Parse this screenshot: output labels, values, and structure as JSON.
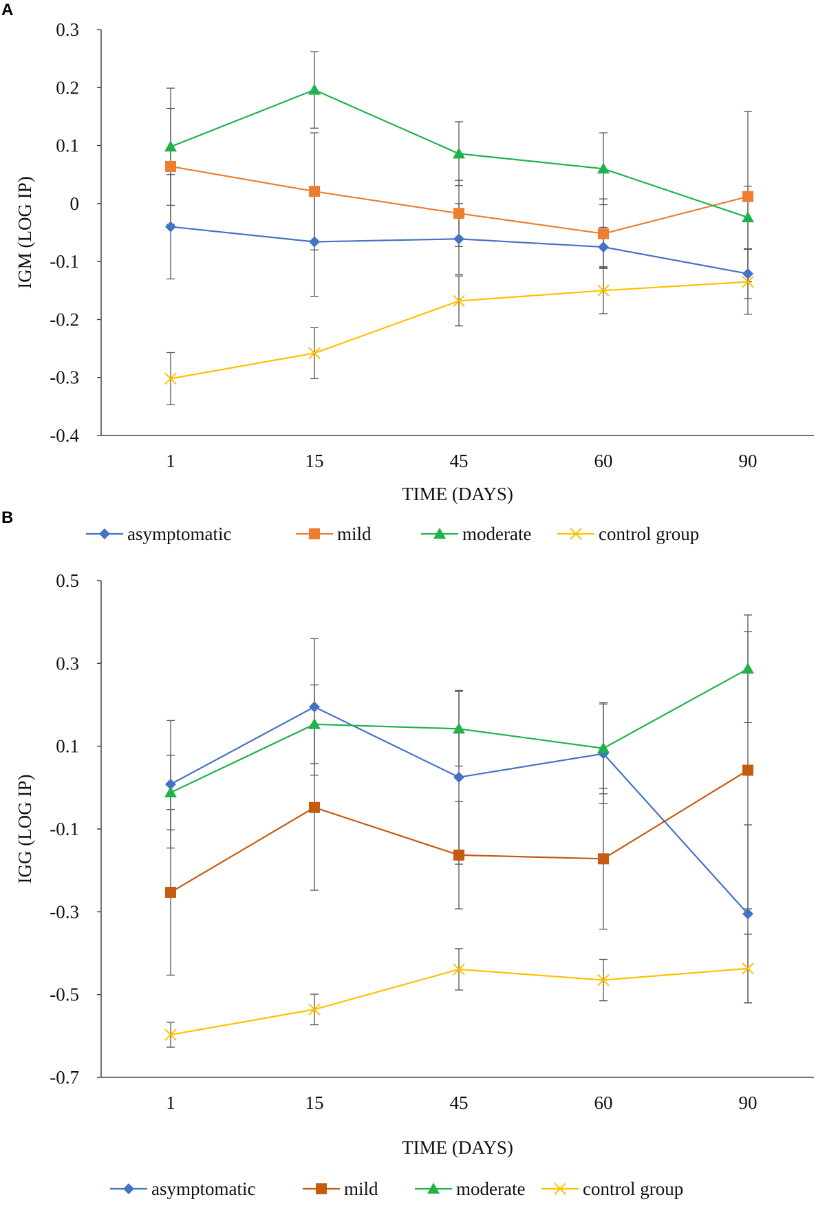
{
  "chart_data": [
    {
      "panel": "A",
      "type": "line",
      "xlabel": "TIME (DAYS)",
      "ylabel": "IGM (LOG IP)",
      "categories": [
        "1",
        "15",
        "45",
        "60",
        "90"
      ],
      "ylim": [
        -0.4,
        0.3
      ],
      "yticks": [
        0.3,
        0.2,
        0.1,
        0,
        -0.1,
        -0.2,
        -0.3,
        -0.4
      ],
      "ytick_labels": [
        "0.3",
        "0.2",
        "0.1",
        "0",
        "-0.1",
        "-0.2",
        "-0.3",
        "-0.4"
      ],
      "series": [
        {
          "name": "asymptomatic",
          "color": "#4472C4",
          "marker": "diamond",
          "values": [
            -0.04,
            -0.066,
            -0.061,
            -0.075,
            -0.121
          ],
          "error": [
            0.09,
            0.094,
            0.061,
            0.034,
            0.043
          ]
        },
        {
          "name": "mild",
          "color": "#ED7D31",
          "marker": "square",
          "values": [
            0.064,
            0.021,
            -0.017,
            -0.052,
            0.012
          ],
          "error": [
            0.1,
            0.101,
            0.057,
            0.06,
            0.147
          ]
        },
        {
          "name": "moderate",
          "color": "#21B24B",
          "marker": "triangle",
          "values": [
            0.098,
            0.196,
            0.086,
            0.06,
            -0.024
          ],
          "error": [
            0.101,
            0.066,
            0.055,
            0.062,
            0.054
          ]
        },
        {
          "name": "control group",
          "color": "#FFC000",
          "marker": "x",
          "values": [
            -0.302,
            -0.258,
            -0.168,
            -0.15,
            -0.135
          ],
          "error": [
            0.045,
            0.044,
            0.043,
            0.04,
            0.056
          ]
        }
      ]
    },
    {
      "panel": "B",
      "type": "line",
      "xlabel": "TIME (DAYS)",
      "ylabel": "IGG (LOG IP)",
      "categories": [
        "1",
        "15",
        "45",
        "60",
        "90"
      ],
      "ylim": [
        -0.7,
        0.5
      ],
      "yticks": [
        0.5,
        0.3,
        0.1,
        -0.1,
        -0.3,
        -0.5,
        -0.7
      ],
      "ytick_labels": [
        "0.5",
        "0.3",
        "0.1",
        "-0.1",
        "-0.3",
        "-0.5",
        "-0.7"
      ],
      "series": [
        {
          "name": "asymptomatic",
          "color": "#4472C4",
          "marker": "diamond",
          "values": [
            0.008,
            0.195,
            0.025,
            0.082,
            -0.305
          ],
          "error": [
            0.154,
            0.165,
            0.21,
            0.12,
            0.215
          ]
        },
        {
          "name": "mild",
          "color": "#C55A11",
          "marker": "square",
          "values": [
            -0.253,
            -0.048,
            -0.163,
            -0.172,
            0.042
          ],
          "error": [
            0.2,
            0.2,
            0.13,
            0.17,
            0.335
          ]
        },
        {
          "name": "moderate",
          "color": "#21B24B",
          "marker": "triangle",
          "values": [
            -0.012,
            0.153,
            0.142,
            0.095,
            0.287
          ],
          "error": [
            0.09,
            0.095,
            0.09,
            0.11,
            0.13
          ]
        },
        {
          "name": "control group",
          "color": "#FFC000",
          "marker": "x",
          "values": [
            -0.597,
            -0.536,
            -0.439,
            -0.465,
            -0.437
          ],
          "error": [
            0.03,
            0.037,
            0.05,
            0.05,
            0.083
          ]
        }
      ]
    }
  ]
}
